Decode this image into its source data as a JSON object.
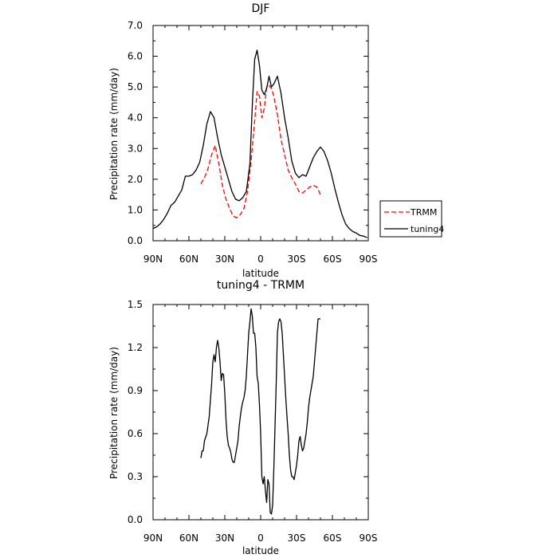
{
  "chart_data": [
    {
      "type": "line",
      "title": "DJF",
      "xlabel": "latitude",
      "ylabel": "Precipitation rate (mm/day)",
      "xlim": [
        90,
        -90
      ],
      "ylim": [
        0,
        7
      ],
      "x_ticks": [
        90,
        60,
        30,
        0,
        -30,
        -60,
        -90
      ],
      "x_tick_labels": [
        "90N",
        "60N",
        "30N",
        "0",
        "30S",
        "60S",
        "90S"
      ],
      "y_ticks": [
        0,
        1,
        2,
        3,
        4,
        5,
        6,
        7
      ],
      "y_tick_labels": [
        "0.0",
        "1.0",
        "2.0",
        "3.0",
        "4.0",
        "5.0",
        "6.0",
        "7.0"
      ],
      "grid": false,
      "legend": "right",
      "series": [
        {
          "name": "TRMM",
          "color": "#ff0000",
          "dash": "dashed",
          "x": [
            50,
            47,
            44,
            41,
            38,
            35,
            32,
            29,
            26,
            23,
            20,
            17,
            14,
            11,
            8,
            5,
            3,
            1,
            -1,
            -3,
            -5,
            -7,
            -9,
            -11,
            -14,
            -17,
            -20,
            -23,
            -26,
            -29,
            -32,
            -35,
            -38,
            -41,
            -44,
            -47,
            -50
          ],
          "y": [
            1.85,
            2.05,
            2.35,
            2.8,
            3.1,
            2.5,
            1.8,
            1.35,
            1.05,
            0.8,
            0.75,
            0.85,
            1.05,
            1.6,
            2.6,
            3.9,
            4.85,
            4.7,
            4.0,
            4.3,
            5.0,
            5.05,
            4.95,
            4.7,
            4.1,
            3.3,
            2.8,
            2.3,
            2.05,
            1.85,
            1.6,
            1.55,
            1.65,
            1.75,
            1.8,
            1.75,
            1.5
          ]
        },
        {
          "name": "tuning4",
          "color": "#000000",
          "dash": "solid",
          "x": [
            90,
            87,
            84,
            81,
            78,
            75,
            72,
            69,
            66,
            63,
            60,
            57,
            54,
            51,
            48,
            45,
            42,
            39,
            36,
            33,
            30,
            27,
            24,
            21,
            18,
            15,
            12,
            9,
            7,
            5,
            3,
            1,
            -1,
            -3,
            -5,
            -7,
            -9,
            -11,
            -14,
            -17,
            -20,
            -23,
            -26,
            -29,
            -32,
            -35,
            -38,
            -41,
            -44,
            -47,
            -50,
            -53,
            -56,
            -59,
            -62,
            -65,
            -68,
            -71,
            -74,
            -77,
            -80,
            -83,
            -86,
            -89
          ],
          "y": [
            0.4,
            0.45,
            0.55,
            0.7,
            0.9,
            1.15,
            1.25,
            1.45,
            1.65,
            2.1,
            2.1,
            2.15,
            2.3,
            2.55,
            3.1,
            3.8,
            4.2,
            4.0,
            3.35,
            2.8,
            2.4,
            2.0,
            1.6,
            1.35,
            1.3,
            1.4,
            1.6,
            2.5,
            4.4,
            5.9,
            6.2,
            5.7,
            4.9,
            4.75,
            4.95,
            5.35,
            5.0,
            5.1,
            5.35,
            4.8,
            4.0,
            3.35,
            2.6,
            2.2,
            2.05,
            2.15,
            2.1,
            2.4,
            2.7,
            2.9,
            3.05,
            2.9,
            2.6,
            2.2,
            1.7,
            1.25,
            0.85,
            0.55,
            0.4,
            0.3,
            0.25,
            0.17,
            0.15,
            0.1
          ]
        }
      ]
    },
    {
      "type": "line",
      "title": "tuning4 - TRMM",
      "xlabel": "latitude",
      "ylabel": "Precipitation rate (mm/day)",
      "xlim": [
        90,
        -90
      ],
      "ylim": [
        0,
        1.5
      ],
      "x_ticks": [
        90,
        60,
        30,
        0,
        -30,
        -60,
        -90
      ],
      "x_tick_labels": [
        "90N",
        "60N",
        "30N",
        "0",
        "30S",
        "60S",
        "90S"
      ],
      "y_ticks": [
        0,
        0.3,
        0.6,
        0.9,
        1.2,
        1.5
      ],
      "y_tick_labels": [
        "0.0",
        "0.3",
        "0.6",
        "0.9",
        "1.2",
        "1.5"
      ],
      "grid": false,
      "series": [
        {
          "color": "#000000",
          "dash": "solid",
          "x": [
            50,
            49,
            48,
            47,
            45,
            43,
            41,
            40,
            39,
            38,
            37,
            36,
            35,
            34,
            33,
            32,
            31,
            30,
            29,
            28,
            27,
            26,
            25,
            24,
            23,
            22,
            21,
            20,
            19,
            18,
            17,
            16,
            15,
            14,
            13,
            12,
            11,
            10,
            9,
            8,
            7,
            6,
            5,
            4,
            3,
            2,
            1,
            0,
            -1,
            -2,
            -3,
            -4,
            -5,
            -6,
            -7,
            -8,
            -9,
            -10,
            -11,
            -12,
            -13,
            -14,
            -15,
            -16,
            -17,
            -18,
            -19,
            -20,
            -21,
            -22,
            -23,
            -24,
            -25,
            -26,
            -27,
            -28,
            -29,
            -30,
            -31,
            -32,
            -33,
            -34,
            -35,
            -36,
            -37,
            -38,
            -39,
            -40,
            -41,
            -42,
            -43,
            -44,
            -45,
            -46,
            -47,
            -48,
            -49,
            -50
          ],
          "y": [
            0.43,
            0.48,
            0.48,
            0.55,
            0.6,
            0.72,
            0.95,
            1.1,
            1.15,
            1.1,
            1.2,
            1.25,
            1.2,
            1.1,
            0.97,
            1.02,
            1.01,
            0.88,
            0.7,
            0.58,
            0.52,
            0.5,
            0.47,
            0.42,
            0.4,
            0.4,
            0.45,
            0.5,
            0.55,
            0.65,
            0.72,
            0.78,
            0.82,
            0.85,
            0.9,
            1.0,
            1.15,
            1.3,
            1.38,
            1.47,
            1.42,
            1.3,
            1.3,
            1.2,
            1.0,
            0.95,
            0.8,
            0.6,
            0.3,
            0.25,
            0.3,
            0.2,
            0.12,
            0.28,
            0.25,
            0.05,
            0.04,
            0.1,
            0.35,
            0.65,
            0.95,
            1.3,
            1.38,
            1.4,
            1.38,
            1.3,
            1.15,
            1.0,
            0.85,
            0.72,
            0.6,
            0.45,
            0.35,
            0.3,
            0.3,
            0.28,
            0.33,
            0.38,
            0.45,
            0.55,
            0.58,
            0.52,
            0.48,
            0.5,
            0.55,
            0.6,
            0.68,
            0.78,
            0.85,
            0.9,
            0.95,
            1.0,
            1.1,
            1.2,
            1.3,
            1.4,
            1.4,
            1.4
          ]
        }
      ]
    }
  ]
}
